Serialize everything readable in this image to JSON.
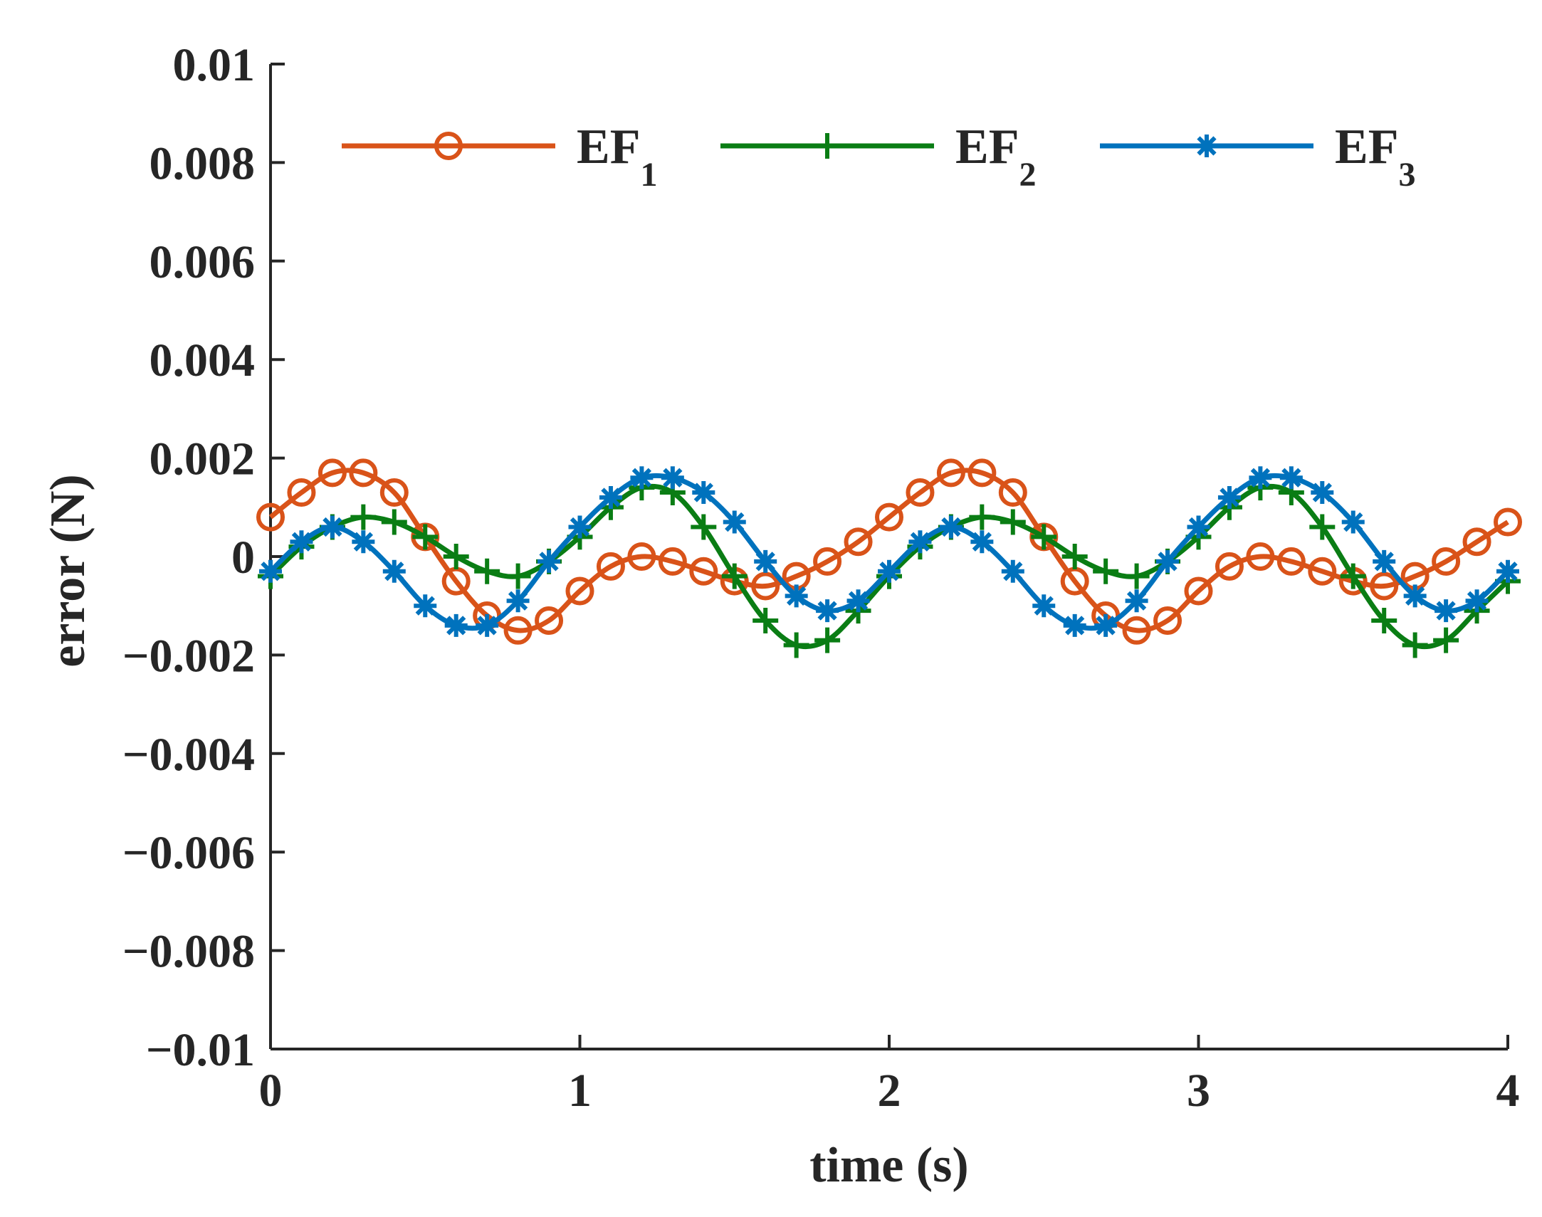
{
  "chart_data": {
    "type": "line",
    "title": "",
    "xlabel": "time (s)",
    "ylabel": "error (N)",
    "xlim": [
      0,
      4
    ],
    "ylim": [
      -0.01,
      0.01
    ],
    "xticks": [
      0,
      1,
      2,
      3,
      4
    ],
    "xtick_labels": [
      "0",
      "1",
      "2",
      "3",
      "4"
    ],
    "yticks": [
      0.01,
      0.008,
      0.006,
      0.004,
      0.002,
      0,
      -0.002,
      -0.004,
      -0.006,
      -0.008,
      -0.01
    ],
    "ytick_labels": [
      "0.01",
      "0.008",
      "0.006",
      "0.004",
      "0.002",
      "0",
      "−0.002",
      "−0.004",
      "−0.006",
      "−0.008",
      "−0.01"
    ],
    "grid": false,
    "legend_position": "top",
    "x": [
      0,
      0.1,
      0.2,
      0.3,
      0.4,
      0.5,
      0.6,
      0.7,
      0.8,
      0.9,
      1.0,
      1.1,
      1.2,
      1.3,
      1.4,
      1.5,
      1.6,
      1.7,
      1.8,
      1.9,
      2.0,
      2.1,
      2.2,
      2.3,
      2.4,
      2.5,
      2.6,
      2.7,
      2.8,
      2.9,
      3.0,
      3.1,
      3.2,
      3.3,
      3.4,
      3.5,
      3.6,
      3.7,
      3.8,
      3.9,
      4.0
    ],
    "series": [
      {
        "name_main": "EF",
        "name_sub": "1",
        "color": "#D95319",
        "marker": "circle",
        "values": [
          0.0008,
          0.0013,
          0.0017,
          0.0017,
          0.0013,
          0.0004,
          -0.0005,
          -0.0012,
          -0.0015,
          -0.0013,
          -0.0007,
          -0.0002,
          0.0,
          -0.0001,
          -0.0003,
          -0.0005,
          -0.0006,
          -0.0004,
          -0.0001,
          0.0003,
          0.0008,
          0.0013,
          0.0017,
          0.0017,
          0.0013,
          0.0004,
          -0.0005,
          -0.0012,
          -0.0015,
          -0.0013,
          -0.0007,
          -0.0002,
          0.0,
          -0.0001,
          -0.0003,
          -0.0005,
          -0.0006,
          -0.0004,
          -0.0001,
          0.0003,
          0.0007
        ]
      },
      {
        "name_main": "EF",
        "name_sub": "2",
        "color": "#0A7D14",
        "marker": "plus",
        "values": [
          -0.0004,
          0.0002,
          0.0006,
          0.0008,
          0.0007,
          0.0004,
          0.0,
          -0.0003,
          -0.0004,
          -0.0001,
          0.0004,
          0.001,
          0.0014,
          0.0013,
          0.0006,
          -0.0004,
          -0.0013,
          -0.0018,
          -0.0017,
          -0.0011,
          -0.0004,
          0.0002,
          0.0006,
          0.0008,
          0.0007,
          0.0004,
          0.0,
          -0.0003,
          -0.0004,
          -0.0001,
          0.0004,
          0.001,
          0.0014,
          0.0013,
          0.0006,
          -0.0004,
          -0.0013,
          -0.0018,
          -0.0017,
          -0.0011,
          -0.0005
        ]
      },
      {
        "name_main": "EF",
        "name_sub": "3",
        "color": "#0072BD",
        "marker": "asterisk",
        "values": [
          -0.0003,
          0.0003,
          0.0006,
          0.0003,
          -0.0003,
          -0.001,
          -0.0014,
          -0.0014,
          -0.0009,
          -0.0001,
          0.0006,
          0.0012,
          0.0016,
          0.0016,
          0.0013,
          0.0007,
          -0.0001,
          -0.0008,
          -0.0011,
          -0.0009,
          -0.0003,
          0.0003,
          0.0006,
          0.0003,
          -0.0003,
          -0.001,
          -0.0014,
          -0.0014,
          -0.0009,
          -0.0001,
          0.0006,
          0.0012,
          0.0016,
          0.0016,
          0.0013,
          0.0007,
          -0.0001,
          -0.0008,
          -0.0011,
          -0.0009,
          -0.0003
        ]
      }
    ]
  }
}
